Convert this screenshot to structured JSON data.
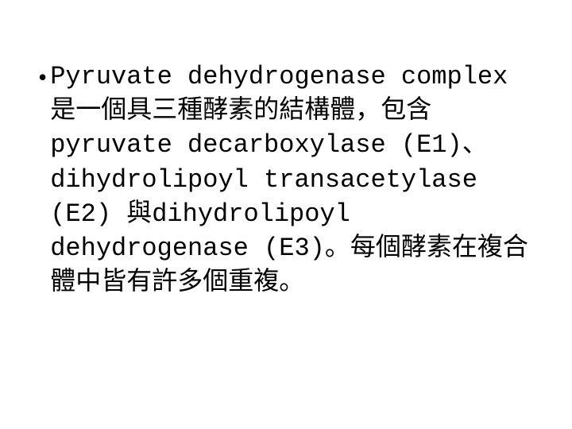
{
  "slide": {
    "bullet_char": "•",
    "body_text": "Pyruvate dehydrogenase complex是一個具三種酵素的結構體，包含pyruvate decarboxylase (E1)、dihydrolipoyl transacetylase (E2) 與dihydrolipoyl dehydrogenase (E3)。每個酵素在複合體中皆有許多個重複。",
    "font_size": 32,
    "text_color": "#000000",
    "background_color": "#ffffff",
    "line_height": 1.35
  }
}
